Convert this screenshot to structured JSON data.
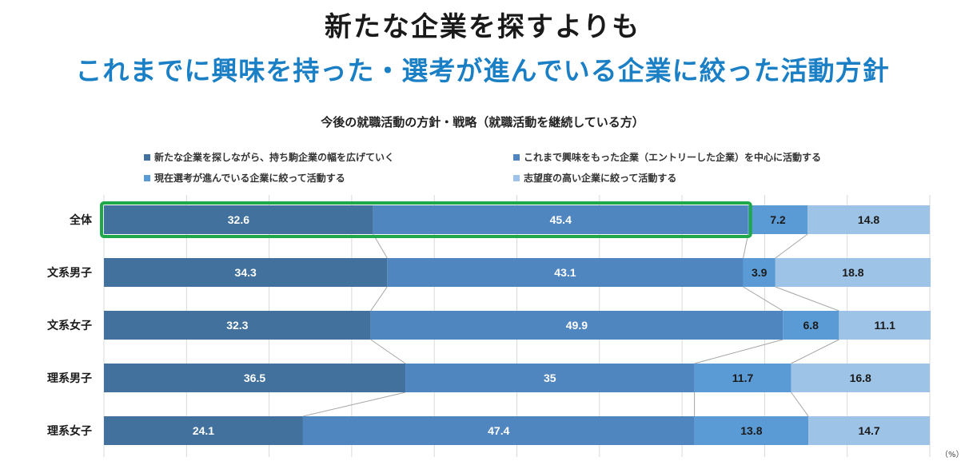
{
  "headline": {
    "line1": "新たな企業を探すよりも",
    "line2": "これまでに興味を持った・選考が進んでいる企業に絞った活動方針"
  },
  "chart_data": {
    "type": "bar",
    "orientation": "horizontal",
    "stacked": true,
    "title": "今後の就職活動の方針・戦略（就職活動を継続している方）",
    "unit_label": "（%）",
    "categories": [
      "全体",
      "文系男子",
      "文系女子",
      "理系男子",
      "理系女子"
    ],
    "series": [
      {
        "name": "新たな企業を探しながら、持ち駒企業の幅を広げていく",
        "values": [
          32.6,
          34.3,
          32.3,
          36.5,
          24.1
        ],
        "color": "#41719c"
      },
      {
        "name": "これまで興味をもった企業（エントリーした企業）を中心に活動する",
        "values": [
          45.4,
          43.1,
          49.9,
          35,
          47.4
        ],
        "color": "#4f86c0"
      },
      {
        "name": "現在選考が進んでいる企業に絞って活動する",
        "values": [
          7.2,
          3.9,
          6.8,
          11.7,
          13.8
        ],
        "color": "#5b9bd5"
      },
      {
        "name": "志望度の高い企業に絞って活動する",
        "values": [
          14.8,
          18.8,
          11.1,
          16.8,
          14.7
        ],
        "color": "#9dc3e6"
      }
    ],
    "xlim": [
      0,
      100
    ],
    "grid": true,
    "legend_position": "top",
    "highlight": {
      "category": "全体",
      "series": [
        0,
        1
      ],
      "color": "#1fa84a"
    }
  }
}
